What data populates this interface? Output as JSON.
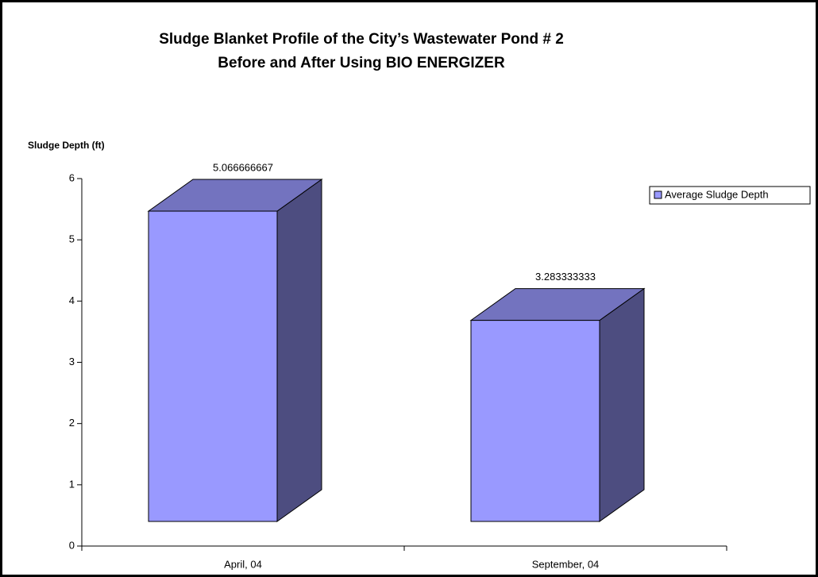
{
  "chart_data": {
    "type": "bar3d",
    "title": [
      "Sludge Blanket Profile of the City’s Wastewater Pond # 2",
      "Before and After Using BIO ENERGIZER"
    ],
    "y_label": "Sludge Depth (ft)",
    "categories": [
      "April, 04",
      "September, 04"
    ],
    "series": [
      {
        "name": "Average Sludge Depth",
        "color": "#9999ff",
        "values": [
          5.066666667,
          3.283333333
        ]
      }
    ],
    "ylim": [
      0,
      6
    ],
    "yticks": [
      0,
      1,
      2,
      3,
      4,
      5,
      6
    ],
    "legend": "right",
    "value_labels_shown": true
  }
}
